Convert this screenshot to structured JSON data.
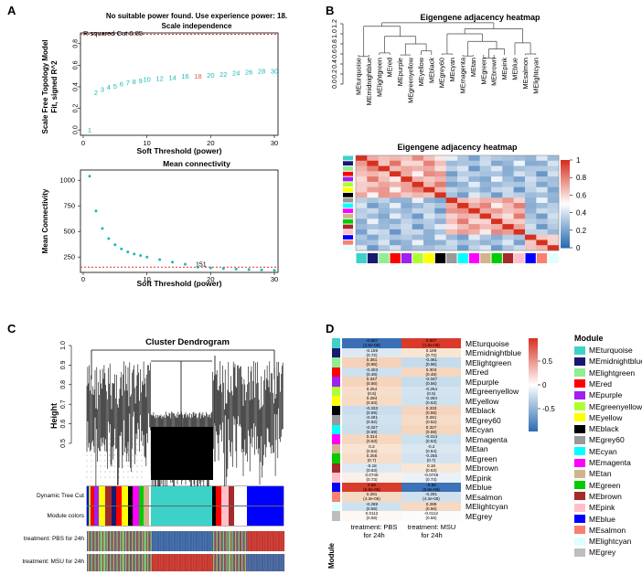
{
  "panels": {
    "A": "A",
    "B": "B",
    "C": "C",
    "D": "D"
  },
  "scale_independence": {
    "header_line1": "No suitable power found. Use experience power: 18.",
    "title": "Scale independence",
    "ylabel_line1": "Scale Free Topology Model",
    "ylabel_line2": "Fit, signed R^2",
    "xlabel": "Soft Threshold (power)",
    "cut_label": "R squared Cut 0.85",
    "y_ticks": [
      "0.0",
      "0.2",
      "0.4",
      "0.6",
      "0.8"
    ],
    "x_ticks": [
      "0",
      "10",
      "20",
      "30"
    ],
    "points": [
      {
        "power": 1,
        "r2": 0.0,
        "label": "1"
      },
      {
        "power": 2,
        "r2": 0.35,
        "label": "2"
      },
      {
        "power": 3,
        "r2": 0.38,
        "label": "3"
      },
      {
        "power": 4,
        "r2": 0.4,
        "label": "4"
      },
      {
        "power": 5,
        "r2": 0.41,
        "label": "5"
      },
      {
        "power": 6,
        "r2": 0.43,
        "label": "6"
      },
      {
        "power": 7,
        "r2": 0.44,
        "label": "7"
      },
      {
        "power": 8,
        "r2": 0.45,
        "label": "8"
      },
      {
        "power": 9,
        "r2": 0.46,
        "label": "9"
      },
      {
        "power": 10,
        "r2": 0.47,
        "label": "10"
      },
      {
        "power": 12,
        "r2": 0.48,
        "label": "12"
      },
      {
        "power": 14,
        "r2": 0.49,
        "label": "14"
      },
      {
        "power": 16,
        "r2": 0.5,
        "label": "16"
      },
      {
        "power": 18,
        "r2": 0.5,
        "label": "18"
      },
      {
        "power": 20,
        "r2": 0.51,
        "label": "20"
      },
      {
        "power": 22,
        "r2": 0.52,
        "label": "22"
      },
      {
        "power": 24,
        "r2": 0.53,
        "label": "24"
      },
      {
        "power": 26,
        "r2": 0.54,
        "label": "26"
      },
      {
        "power": 28,
        "r2": 0.55,
        "label": "28"
      },
      {
        "power": 30,
        "r2": 0.55,
        "label": "30"
      }
    ]
  },
  "mean_connectivity": {
    "title": "Mean connectivity",
    "ylabel": "Mean Connectivity",
    "xlabel": "Soft Threshold (power)",
    "ref_label": "151",
    "y_ticks": [
      "250",
      "500",
      "750",
      "1000"
    ],
    "x_ticks": [
      "0",
      "10",
      "20",
      "30"
    ],
    "points": [
      [
        1,
        1040
      ],
      [
        2,
        700
      ],
      [
        3,
        530
      ],
      [
        4,
        430
      ],
      [
        5,
        370
      ],
      [
        6,
        330
      ],
      [
        7,
        300
      ],
      [
        8,
        280
      ],
      [
        9,
        265
      ],
      [
        10,
        250
      ],
      [
        12,
        225
      ],
      [
        14,
        200
      ],
      [
        16,
        180
      ],
      [
        18,
        151
      ],
      [
        20,
        145
      ],
      [
        22,
        138
      ],
      [
        24,
        132
      ],
      [
        26,
        128
      ],
      [
        28,
        124
      ],
      [
        30,
        120
      ]
    ]
  },
  "eigengene_dendro": {
    "title": "Eigengene adjacency heatmap",
    "y_ticks": [
      "0.0",
      "0.2",
      "0.4",
      "0.6",
      "0.8",
      "1.0",
      "1.2"
    ],
    "leaves": [
      "MEturquoise",
      "MEmidnightblue",
      "MElightgreen",
      "MEred",
      "MEpurple",
      "MEgreenyellow",
      "MEyellow",
      "MEblack",
      "MEgrey60",
      "MEcyan",
      "MEmagenta",
      "MEtan",
      "MEgreen",
      "MEbrown",
      "MEpink",
      "MEblue",
      "MEsalmon",
      "MElightcyan"
    ]
  },
  "eigengene_heatmap": {
    "title": "Eigengene adjacency heatmap",
    "scale_ticks": [
      "1",
      "0.8",
      "0.6",
      "0.4",
      "0.2",
      "0"
    ],
    "side_colors": [
      "#3cd2c8",
      "#191970",
      "#90ee90",
      "#ff0000",
      "#a020f0",
      "#adff2f",
      "#ffff00",
      "#000000",
      "#999999",
      "#00ffff",
      "#ff00ff",
      "#d2b48c",
      "#00cc00",
      "#a52a2a",
      "#ffc0cb",
      "#0000ff",
      "#fa8072",
      "#e0ffff"
    ]
  },
  "cluster": {
    "title": "Cluster Dendrogram",
    "ylabel": "Height",
    "y_ticks": [
      "1.0",
      "0.9",
      "0.8",
      "0.7",
      "0.6",
      "0.5"
    ],
    "row_labels": [
      "Dynamic Tree Cut",
      "Module colors",
      "treatment: PBS for 24h",
      "treatment: MSU for 24h"
    ]
  },
  "trait_heatmap": {
    "columns": [
      "treatment: PBS\nfor 24h",
      "treatment: MSU\nfor 24h"
    ],
    "col1": "treatment: PBS",
    "col1b": "for 24h",
    "col2": "treatment: MSU",
    "col2b": "for 24h",
    "side_title": "Module",
    "scale_ticks": [
      "0.5",
      "0",
      "-0.5"
    ],
    "rows": [
      {
        "module": "MEturquoise",
        "color": "#3cd2c8",
        "pbs": "-0.907",
        "pbs_p": "(1.5e-09)",
        "msu": "0.907",
        "msu_p": "(1.5e-09)",
        "pbs_c": "#3a6fb5",
        "msu_c": "#d93a2b"
      },
      {
        "module": "MEmidnightblue",
        "color": "#191970",
        "pbs": "-0.189",
        "pbs_p": "(0.72)",
        "msu": "0.189",
        "msu_p": "(0.72)",
        "pbs_c": "#dce9f2",
        "msu_c": "#f8e6d5"
      },
      {
        "module": "MElightgreen",
        "color": "#90ee90",
        "pbs": "0.361",
        "pbs_p": "(0.96)",
        "msu": "-0.361",
        "msu_p": "(0.96)",
        "pbs_c": "#f5d2b8",
        "msu_c": "#c5dcec"
      },
      {
        "module": "MEred",
        "color": "#ff0000",
        "pbs": "-0.303",
        "pbs_p": "(0.48)",
        "msu": "0.303",
        "msu_p": "(0.48)",
        "pbs_c": "#cfe1ee",
        "msu_c": "#f6d8c1"
      },
      {
        "module": "MEpurple",
        "color": "#a020f0",
        "pbs": "0.347",
        "pbs_p": "(0.56)",
        "msu": "-0.347",
        "msu_p": "(0.56)",
        "pbs_c": "#f5d4bb",
        "msu_c": "#c7ddec"
      },
      {
        "module": "MEgreenyellow",
        "color": "#adff2f",
        "pbs": "0.254",
        "pbs_p": "(0.5)",
        "msu": "-0.254",
        "msu_p": "(0.5)",
        "pbs_c": "#f7decb",
        "msu_c": "#d3e4f0"
      },
      {
        "module": "MEyellow",
        "color": "#ffff00",
        "pbs": "0.284",
        "pbs_p": "(0.63)",
        "msu": "-0.284",
        "msu_p": "(0.63)",
        "pbs_c": "#f6dbc5",
        "msu_c": "#d1e2ef"
      },
      {
        "module": "MEblack",
        "color": "#000000",
        "pbs": "-0.333",
        "pbs_p": "(0.59)",
        "msu": "0.333",
        "msu_p": "(0.59)",
        "pbs_c": "#cadeed",
        "msu_c": "#f5d5bd"
      },
      {
        "module": "MEgrey60",
        "color": "#999999",
        "pbs": "-0.281",
        "pbs_p": "(0.52)",
        "msu": "0.281",
        "msu_p": "(0.52)",
        "pbs_c": "#d1e2ef",
        "msu_c": "#f6dbc6"
      },
      {
        "module": "MEcyan",
        "color": "#00ffff",
        "pbs": "-0.327",
        "pbs_p": "(0.59)",
        "msu": "0.327",
        "msu_p": "(0.59)",
        "pbs_c": "#cbdfed",
        "msu_c": "#f5d6be"
      },
      {
        "module": "MEmagenta",
        "color": "#ff00ff",
        "pbs": "0.314",
        "pbs_p": "(0.53)",
        "msu": "-0.314",
        "msu_p": "(0.53)",
        "pbs_c": "#f6d7bf",
        "msu_c": "#cde0ee"
      },
      {
        "module": "MEtan",
        "color": "#d2b48c",
        "pbs": "0.2",
        "pbs_p": "(0.54)",
        "msu": "-0.2",
        "msu_p": "(0.54)",
        "pbs_c": "#f8e4d3",
        "msu_c": "#d9e7f1"
      },
      {
        "module": "MEgreen",
        "color": "#00cc00",
        "pbs": "0.255",
        "pbs_p": "(0.7)",
        "msu": "-0.255",
        "msu_p": "(0.7)",
        "pbs_c": "#f7decb",
        "msu_c": "#d3e4f0"
      },
      {
        "module": "MEbrown",
        "color": "#a52a2a",
        "pbs": "-0.18",
        "pbs_p": "(0.63)",
        "msu": "0.18",
        "msu_p": "(0.63)",
        "pbs_c": "#dde9f2",
        "msu_c": "#f8e7d7"
      },
      {
        "module": "MEpink",
        "color": "#ffc0cb",
        "pbs": "0.0746",
        "pbs_p": "(0.73)",
        "msu": "-0.0746",
        "msu_p": "(0.73)",
        "pbs_c": "#faf0e8",
        "msu_c": "#ebf2f7"
      },
      {
        "module": "MEblue",
        "color": "#0000ff",
        "pbs": "0.89",
        "pbs_p": "(5.8e-09)",
        "msu": "-0.89",
        "msu_p": "(5.8e-09)",
        "pbs_c": "#d83c2d",
        "msu_c": "#3c72b6"
      },
      {
        "module": "MEsalmon",
        "color": "#fa8072",
        "pbs": "0.291",
        "pbs_p": "(4.3e-05)",
        "msu": "-0.291",
        "msu_p": "(4.3e-05)",
        "pbs_c": "#f6d9c3",
        "msu_c": "#cfe1ee"
      },
      {
        "module": "MElightcyan",
        "color": "#e0ffff",
        "pbs": "-0.289",
        "pbs_p": "(0.56)",
        "msu": "0.289",
        "msu_p": "(0.56)",
        "pbs_c": "#d0e1ee",
        "msu_c": "#f6d9c3"
      },
      {
        "module": "MEgrey",
        "color": "#bebebe",
        "pbs": "0.0112",
        "pbs_p": "(0.58)",
        "msu": "-0.0112",
        "msu_p": "(0.58)",
        "pbs_c": "#fdf8f4",
        "msu_c": "#f9fbfd"
      }
    ]
  },
  "module_legend": {
    "title": "Module",
    "items": [
      {
        "name": "MEturquoise",
        "color": "#3cd2c8"
      },
      {
        "name": "MEmidnightblue",
        "color": "#191970"
      },
      {
        "name": "MElightgreen",
        "color": "#90ee90"
      },
      {
        "name": "MEred",
        "color": "#ff0000"
      },
      {
        "name": "MEpurple",
        "color": "#a020f0"
      },
      {
        "name": "MEgreenyellow",
        "color": "#adff2f"
      },
      {
        "name": "MEyellow",
        "color": "#ffff00"
      },
      {
        "name": "MEblack",
        "color": "#000000"
      },
      {
        "name": "MEgrey60",
        "color": "#999999"
      },
      {
        "name": "MEcyan",
        "color": "#00ffff"
      },
      {
        "name": "MEmagenta",
        "color": "#ff00ff"
      },
      {
        "name": "MEtan",
        "color": "#d2b48c"
      },
      {
        "name": "MEgreen",
        "color": "#00cc00"
      },
      {
        "name": "MEbrown",
        "color": "#a52a2a"
      },
      {
        "name": "MEpink",
        "color": "#ffc0cb"
      },
      {
        "name": "MEblue",
        "color": "#0000ff"
      },
      {
        "name": "MEsalmon",
        "color": "#fa8072"
      },
      {
        "name": "MElightcyan",
        "color": "#e0ffff"
      },
      {
        "name": "MEgrey",
        "color": "#bebebe"
      }
    ]
  },
  "chart_data": [
    {
      "type": "scatter",
      "title": "Scale independence",
      "xlabel": "Soft Threshold (power)",
      "ylabel": "Scale Free Topology Model Fit, signed R^2",
      "x": [
        1,
        2,
        3,
        4,
        5,
        6,
        7,
        8,
        9,
        10,
        12,
        14,
        16,
        18,
        20,
        22,
        24,
        26,
        28,
        30
      ],
      "y": [
        0.0,
        0.35,
        0.38,
        0.4,
        0.41,
        0.43,
        0.44,
        0.45,
        0.46,
        0.47,
        0.48,
        0.49,
        0.5,
        0.5,
        0.51,
        0.52,
        0.53,
        0.54,
        0.55,
        0.55
      ],
      "xlim": [
        0,
        31
      ],
      "ylim": [
        -0.05,
        0.9
      ]
    },
    {
      "type": "scatter",
      "title": "Mean connectivity",
      "xlabel": "Soft Threshold (power)",
      "ylabel": "Mean Connectivity",
      "x": [
        1,
        2,
        3,
        4,
        5,
        6,
        7,
        8,
        9,
        10,
        12,
        14,
        16,
        18,
        20,
        22,
        24,
        26,
        28,
        30
      ],
      "y": [
        1040,
        700,
        530,
        430,
        370,
        330,
        300,
        280,
        265,
        250,
        225,
        200,
        180,
        151,
        145,
        138,
        132,
        128,
        124,
        120
      ],
      "xlim": [
        0,
        31
      ],
      "ylim": [
        100,
        1100
      ]
    }
  ]
}
